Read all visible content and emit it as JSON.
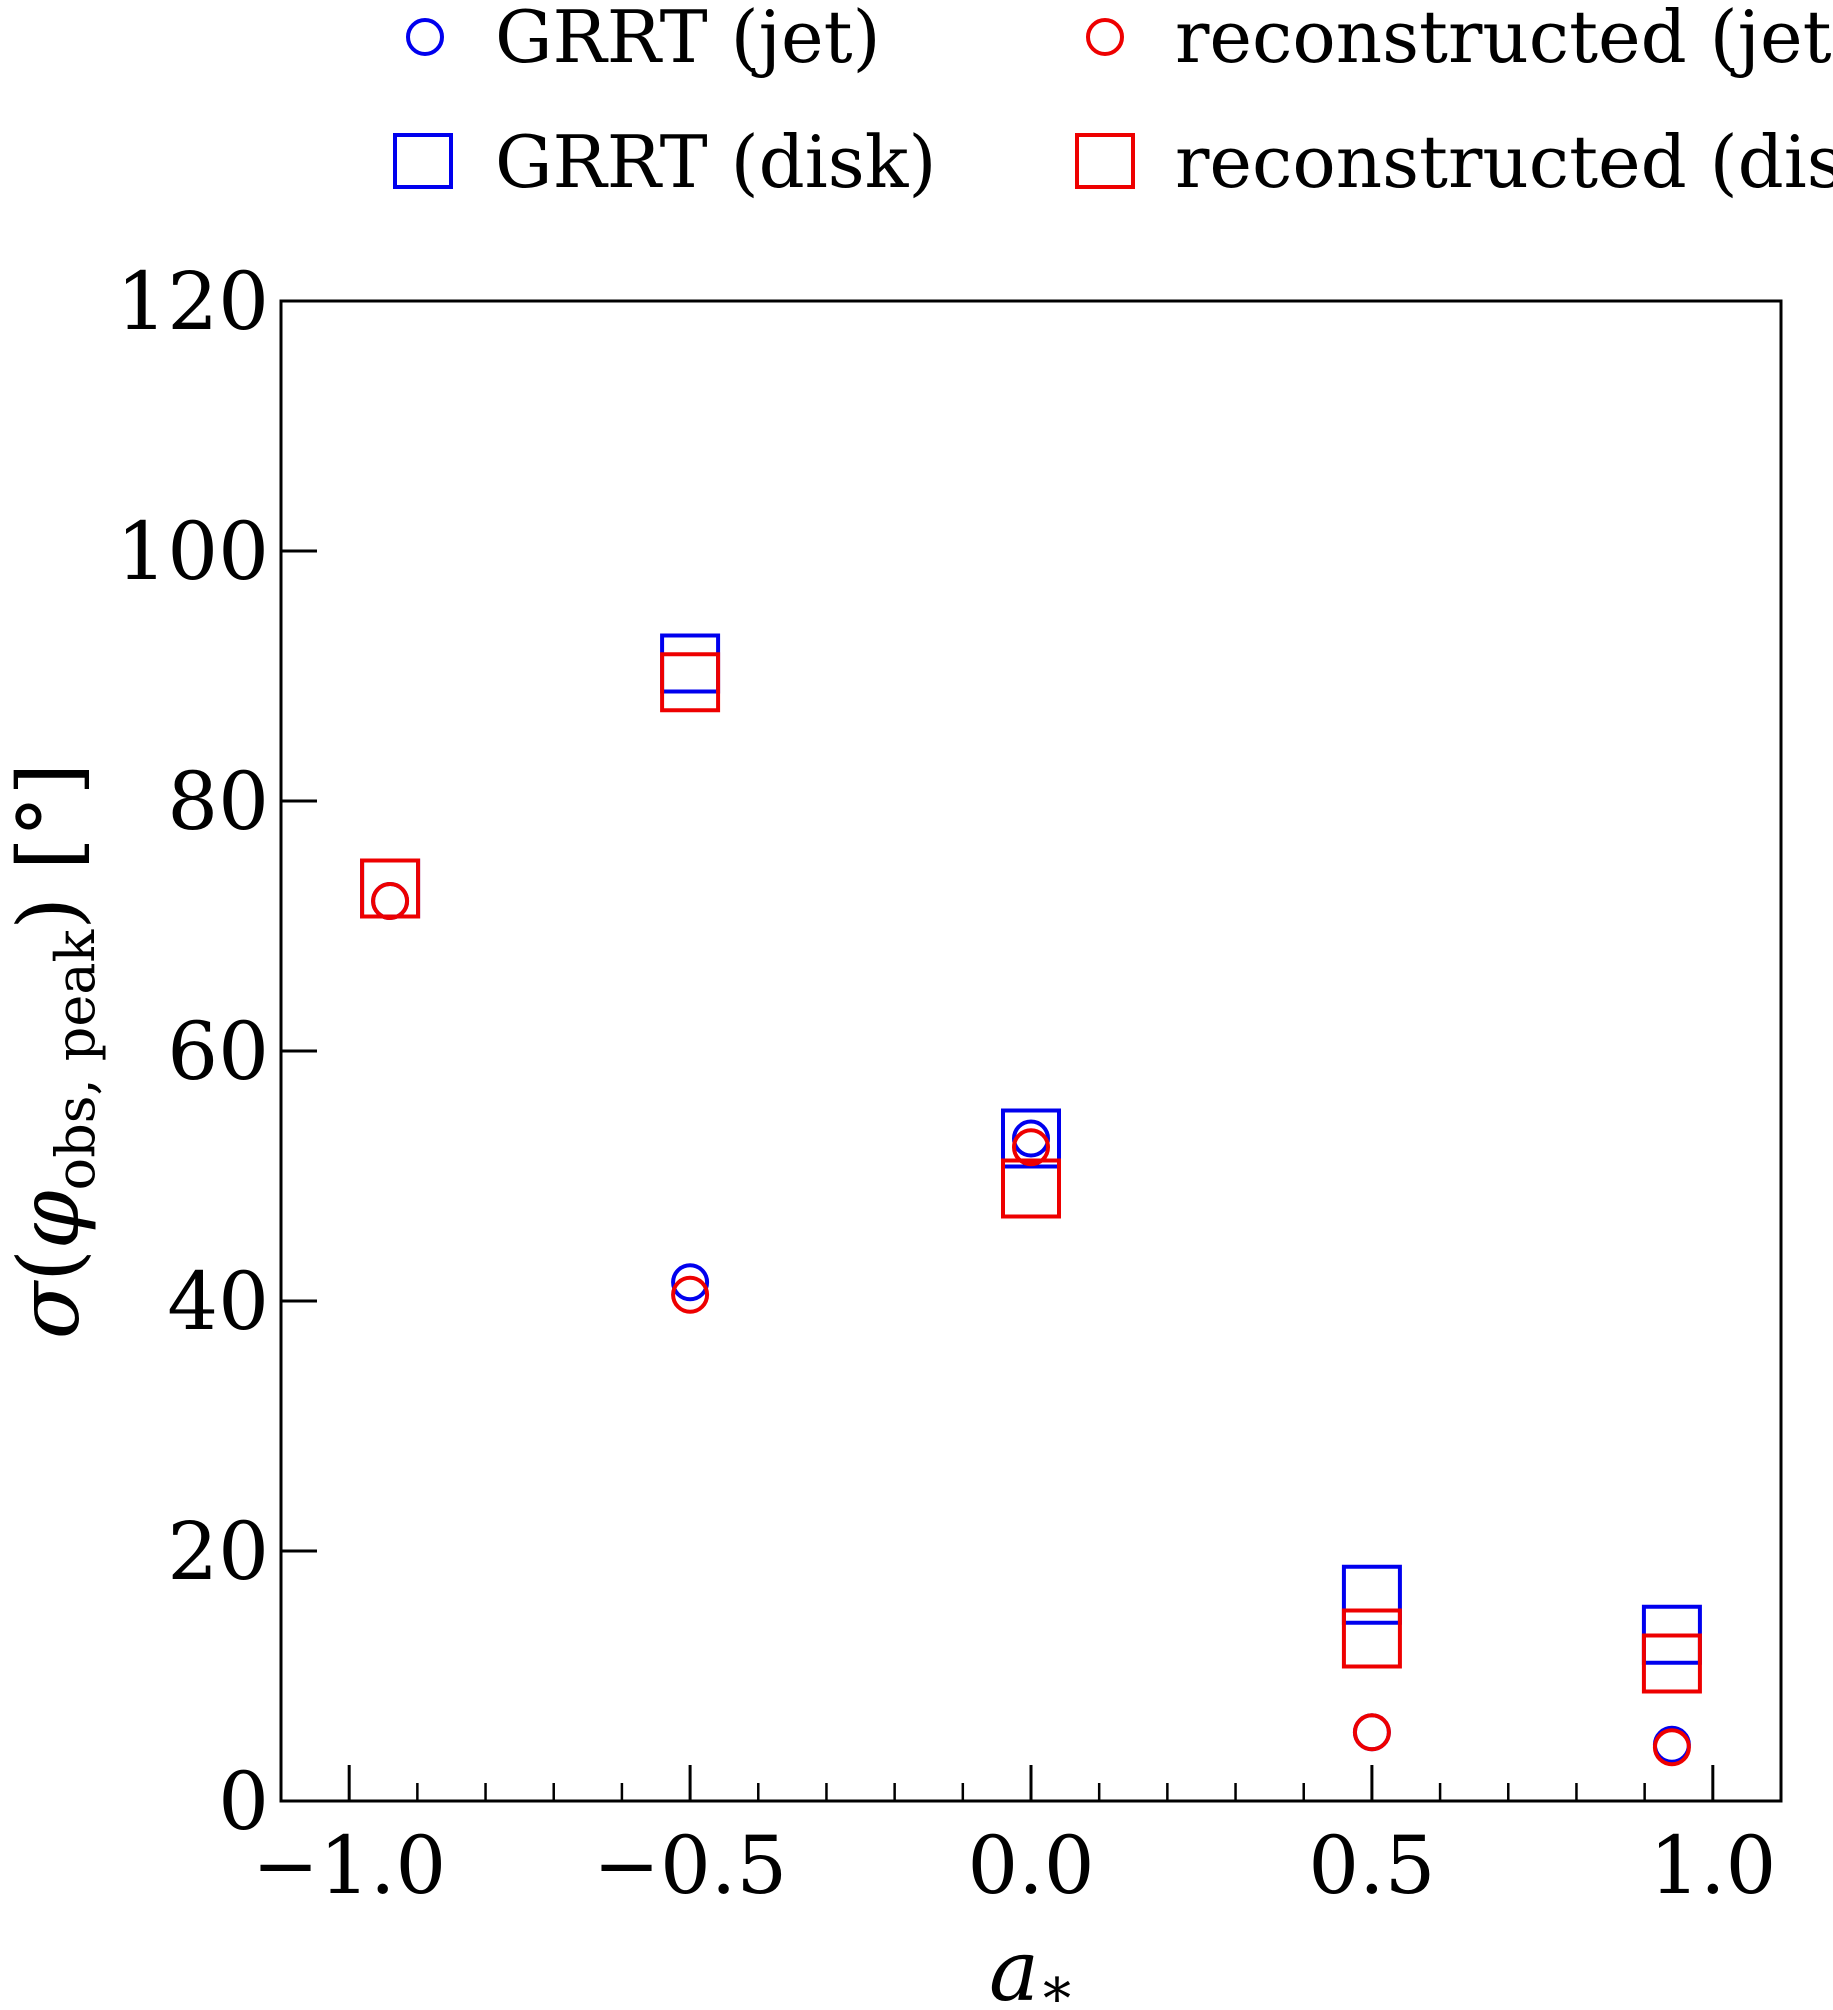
{
  "chart_data": {
    "type": "scatter",
    "title": "",
    "xlabel": "a_*",
    "xlabel_main": "a",
    "xlabel_sub": "*",
    "ylabel": "σ(φ_obs, peak) [°]",
    "ylabel_sigma": "σ",
    "ylabel_phi": "φ",
    "ylabel_sub": "obs, peak",
    "ylabel_unit": "[°]",
    "xlim": [
      -1.1,
      1.1
    ],
    "ylim": [
      0,
      120
    ],
    "xticks": [
      -1.0,
      -0.5,
      0.0,
      0.5,
      1.0
    ],
    "xtick_labels": [
      "−1.0",
      "−0.5",
      "0.0",
      "0.5",
      "1.0"
    ],
    "xminor_step": 0.1,
    "yticks": [
      0,
      20,
      40,
      60,
      80,
      100,
      120
    ],
    "ytick_labels": [
      "0",
      "20",
      "40",
      "60",
      "80",
      "100",
      "120"
    ],
    "grid": false,
    "legend_position": "top",
    "series": [
      {
        "name": "GRRT (jet)",
        "marker": "circle",
        "color": "#0000ee",
        "x": [
          -0.94,
          -0.5,
          0.0,
          0.5,
          0.94
        ],
        "y": [
          72.0,
          41.5,
          53.0,
          5.5,
          4.5
        ]
      },
      {
        "name": "reconstructed (jet)",
        "marker": "circle",
        "color": "#ee0000",
        "x": [
          -0.94,
          -0.5,
          0.0,
          0.5,
          0.94
        ],
        "y": [
          72.0,
          40.5,
          52.3,
          5.5,
          4.3
        ]
      },
      {
        "name": "GRRT (disk)",
        "marker": "square",
        "color": "#0000ee",
        "x": [
          -0.94,
          -0.5,
          0.0,
          0.5,
          0.94
        ],
        "y": [
          73.0,
          91.0,
          53.0,
          16.5,
          13.3
        ]
      },
      {
        "name": "reconstructed (disk)",
        "marker": "square",
        "color": "#ee0000",
        "x": [
          -0.94,
          -0.5,
          0.0,
          0.5,
          0.94
        ],
        "y": [
          73.0,
          89.5,
          49.0,
          13.0,
          11.0
        ]
      }
    ]
  }
}
